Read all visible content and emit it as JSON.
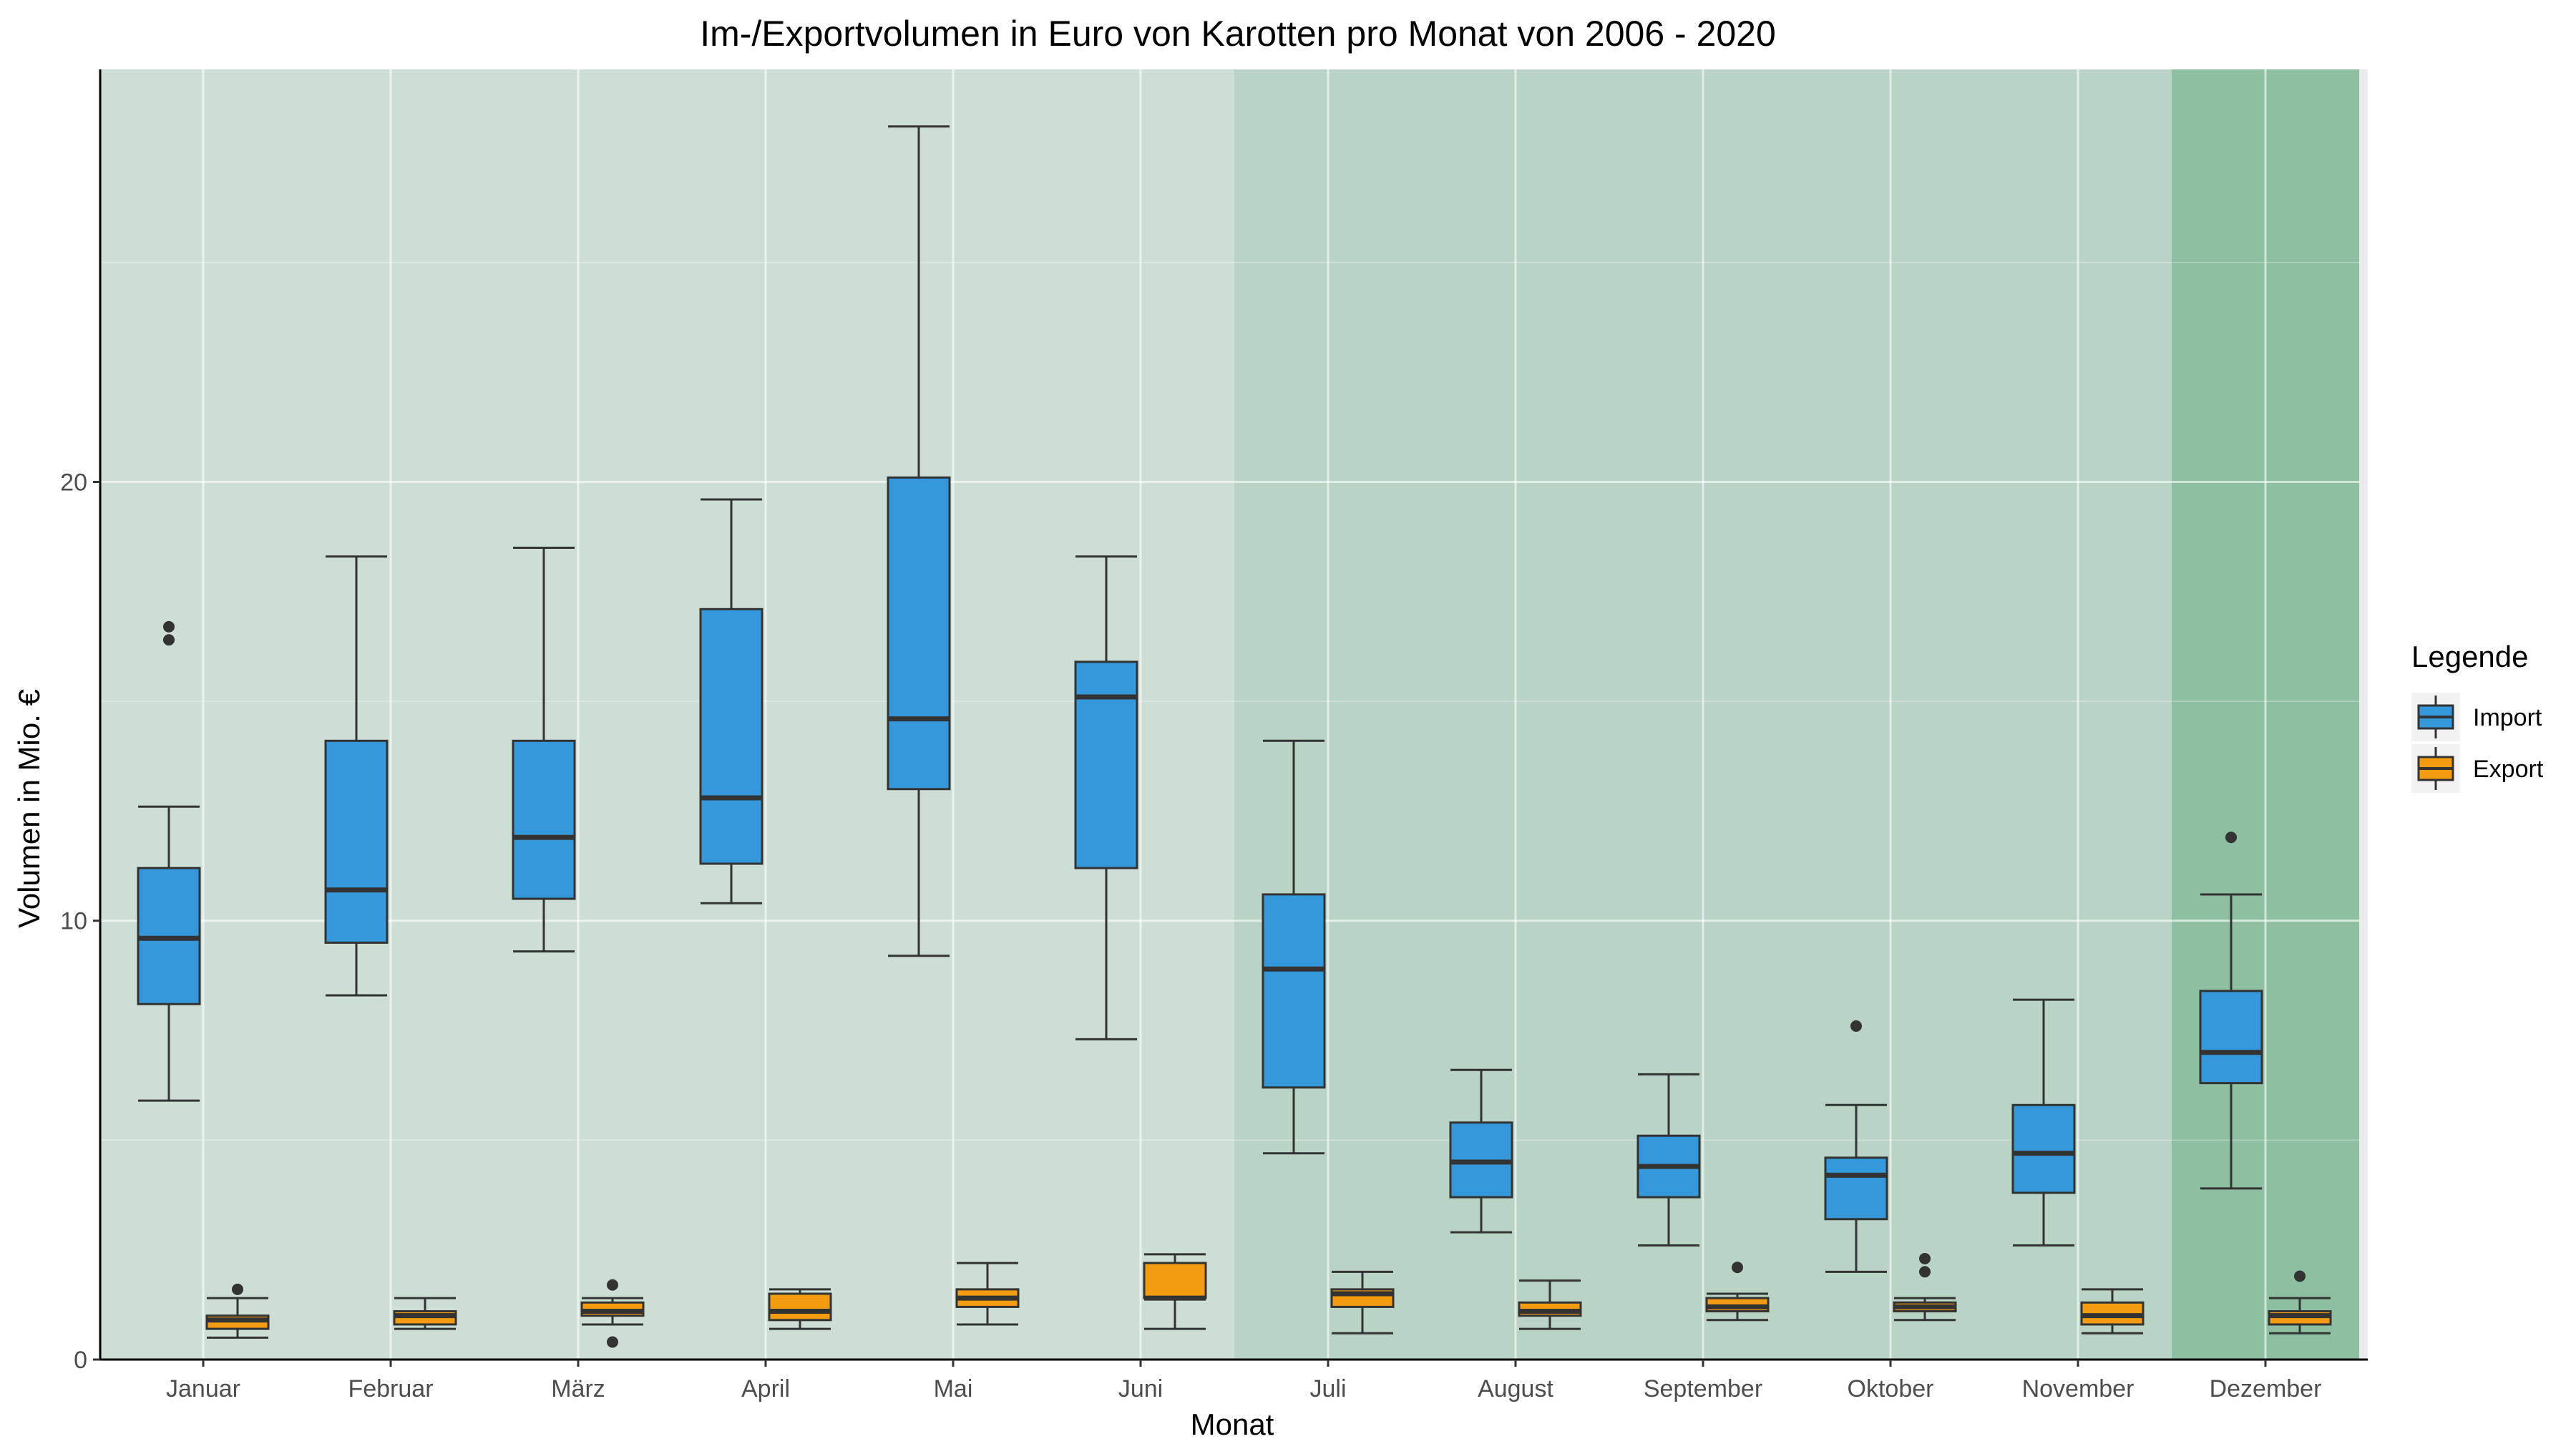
{
  "chart_data": {
    "type": "boxplot",
    "title": "Im-/Exportvolumen in Euro von Karotten pro Monat von 2006 - 2020",
    "xlabel": "Monat",
    "ylabel": "Volumen in Mio. €",
    "ylim": [
      0,
      29.4
    ],
    "yticks": [
      "0",
      "10",
      "20"
    ],
    "grid": true,
    "legend": {
      "title": "Legende",
      "position": "right"
    },
    "categories": [
      "Januar",
      "Februar",
      "März",
      "April",
      "Mai",
      "Juni",
      "Juli",
      "August",
      "September",
      "Oktober",
      "November",
      "Dezember"
    ],
    "season_bands": [
      {
        "from": 0,
        "to": 5,
        "color": "#cddfd5"
      },
      {
        "from": 6,
        "to": 10,
        "color": "#b9d3c4"
      },
      {
        "from": 11,
        "to": 11,
        "color": "#8dbfa0"
      }
    ],
    "series": [
      {
        "name": "Import",
        "color": "#3498db",
        "boxes": [
          {
            "min": 5.9,
            "q1": 8.1,
            "median": 9.6,
            "q3": 11.2,
            "max": 12.6,
            "outliers": [
              16.4,
              16.7
            ]
          },
          {
            "min": 8.3,
            "q1": 9.5,
            "median": 10.7,
            "q3": 14.1,
            "max": 18.3,
            "outliers": []
          },
          {
            "min": 9.3,
            "q1": 10.5,
            "median": 11.9,
            "q3": 14.1,
            "max": 18.5,
            "outliers": []
          },
          {
            "min": 10.4,
            "q1": 11.3,
            "median": 12.8,
            "q3": 17.1,
            "max": 19.6,
            "outliers": []
          },
          {
            "min": 9.2,
            "q1": 13.0,
            "median": 14.6,
            "q3": 20.1,
            "max": 28.1,
            "outliers": []
          },
          {
            "min": 7.3,
            "q1": 11.2,
            "median": 15.1,
            "q3": 15.9,
            "max": 18.3,
            "outliers": []
          },
          {
            "min": 4.7,
            "q1": 6.2,
            "median": 8.9,
            "q3": 10.6,
            "max": 14.1,
            "outliers": []
          },
          {
            "min": 2.9,
            "q1": 3.7,
            "median": 4.5,
            "q3": 5.4,
            "max": 6.6,
            "outliers": []
          },
          {
            "min": 2.6,
            "q1": 3.7,
            "median": 4.4,
            "q3": 5.1,
            "max": 6.5,
            "outliers": []
          },
          {
            "min": 2.0,
            "q1": 3.2,
            "median": 4.2,
            "q3": 4.6,
            "max": 5.8,
            "outliers": [
              7.6
            ]
          },
          {
            "min": 2.6,
            "q1": 3.8,
            "median": 4.7,
            "q3": 5.8,
            "max": 8.2,
            "outliers": []
          },
          {
            "min": 3.9,
            "q1": 6.3,
            "median": 7.0,
            "q3": 8.4,
            "max": 10.6,
            "outliers": [
              11.9
            ]
          }
        ]
      },
      {
        "name": "Export",
        "color": "#f39c12",
        "boxes": [
          {
            "min": 0.5,
            "q1": 0.7,
            "median": 0.9,
            "q3": 1.0,
            "max": 1.4,
            "outliers": [
              1.6
            ]
          },
          {
            "min": 0.7,
            "q1": 0.8,
            "median": 1.0,
            "q3": 1.1,
            "max": 1.4,
            "outliers": []
          },
          {
            "min": 0.8,
            "q1": 1.0,
            "median": 1.1,
            "q3": 1.3,
            "max": 1.4,
            "outliers": [
              1.7,
              0.4
            ]
          },
          {
            "min": 0.7,
            "q1": 0.9,
            "median": 1.1,
            "q3": 1.5,
            "max": 1.6,
            "outliers": []
          },
          {
            "min": 0.8,
            "q1": 1.2,
            "median": 1.4,
            "q3": 1.6,
            "max": 2.2,
            "outliers": []
          },
          {
            "min": 0.7,
            "q1": 1.4,
            "median": 1.4,
            "q3": 2.2,
            "max": 2.4,
            "outliers": []
          },
          {
            "min": 0.6,
            "q1": 1.2,
            "median": 1.5,
            "q3": 1.6,
            "max": 2.0,
            "outliers": []
          },
          {
            "min": 0.7,
            "q1": 1.0,
            "median": 1.1,
            "q3": 1.3,
            "max": 1.8,
            "outliers": []
          },
          {
            "min": 0.9,
            "q1": 1.1,
            "median": 1.2,
            "q3": 1.4,
            "max": 1.5,
            "outliers": [
              2.1
            ]
          },
          {
            "min": 0.9,
            "q1": 1.1,
            "median": 1.2,
            "q3": 1.3,
            "max": 1.4,
            "outliers": [
              2.0,
              2.3
            ]
          },
          {
            "min": 0.6,
            "q1": 0.8,
            "median": 1.0,
            "q3": 1.3,
            "max": 1.6,
            "outliers": []
          },
          {
            "min": 0.6,
            "q1": 0.8,
            "median": 1.0,
            "q3": 1.1,
            "max": 1.4,
            "outliers": [
              1.9
            ]
          }
        ]
      }
    ]
  }
}
